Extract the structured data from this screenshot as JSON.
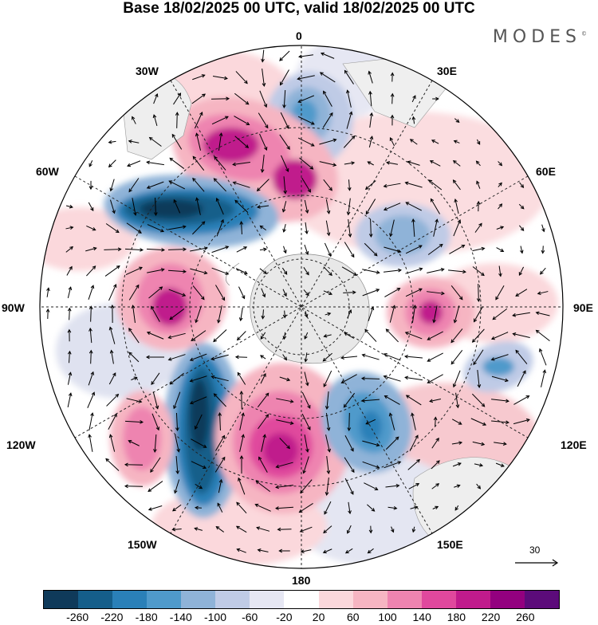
{
  "title": "Base 18/02/2025 00 UTC, valid 18/02/2025 00 UTC",
  "brand": "MODES",
  "brand_mark": "©",
  "longitude_labels": {
    "top": "0",
    "bottom": "180",
    "left": "90W",
    "right": "90E",
    "upper_left_1": "30W",
    "upper_left_2": "60W",
    "upper_right_1": "30E",
    "upper_right_2": "60E",
    "lower_left_1": "120W",
    "lower_left_2": "150W",
    "lower_right_1": "120E",
    "lower_right_2": "150E"
  },
  "reference_vector": {
    "label": "30"
  },
  "colorbar": {
    "colors": [
      "#0f3a5a",
      "#155e8a",
      "#2a80b8",
      "#4f9acb",
      "#8fb3d8",
      "#bfcbe6",
      "#e6e7f3",
      "#ffffff",
      "#fbd8dc",
      "#f6b5c2",
      "#ee84b0",
      "#e0489d",
      "#c01b8c",
      "#93007f",
      "#5c0b7a"
    ],
    "tick_labels": [
      "-260",
      "-220",
      "-180",
      "-140",
      "-100",
      "-60",
      "-20",
      "20",
      "60",
      "100",
      "140",
      "180",
      "220",
      "260"
    ]
  },
  "map_features": {
    "land_color": "#e8e8e8",
    "background": "#ffffff"
  }
}
